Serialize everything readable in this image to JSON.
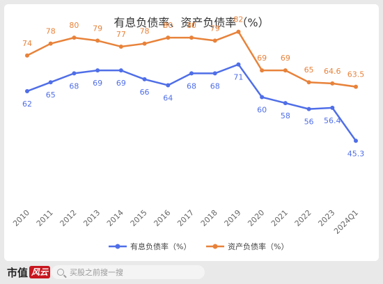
{
  "chart_data": {
    "type": "line",
    "title": "有息负债率、资产负债率（%）",
    "categories": [
      "2010",
      "2011",
      "2012",
      "2013",
      "2014",
      "2015",
      "2016",
      "2017",
      "2018",
      "2019",
      "2020",
      "2021",
      "2022",
      "2023",
      "2024Q1"
    ],
    "series": [
      {
        "name": "有息负债率（%）",
        "color": "#4f6ee8",
        "values": [
          62,
          65,
          68,
          69,
          69,
          66,
          64,
          68,
          68,
          71,
          60,
          58,
          56,
          56.4,
          45.3
        ],
        "labels": [
          "62",
          "65",
          "68",
          "69",
          "69",
          "66",
          "64",
          "68",
          "68",
          "71",
          "60",
          "58",
          "56",
          "56.4",
          "45.3"
        ]
      },
      {
        "name": "资产负债率（%）",
        "color": "#e8823a",
        "values": [
          74,
          78,
          80,
          79,
          77,
          78,
          80,
          80,
          79,
          82,
          69,
          69,
          65,
          64.6,
          63.5
        ],
        "labels": [
          "74",
          "78",
          "80",
          "79",
          "77",
          "78",
          "80",
          "80",
          "79",
          "82",
          "69",
          "69",
          "65",
          "64.6",
          "63.5"
        ]
      }
    ],
    "legend_position": "bottom-center",
    "grid": false,
    "xlabel": "",
    "ylabel": ""
  },
  "footer": {
    "brand": "市值",
    "brand_mark": "风云",
    "search_placeholder": "买股之前搜一搜"
  }
}
